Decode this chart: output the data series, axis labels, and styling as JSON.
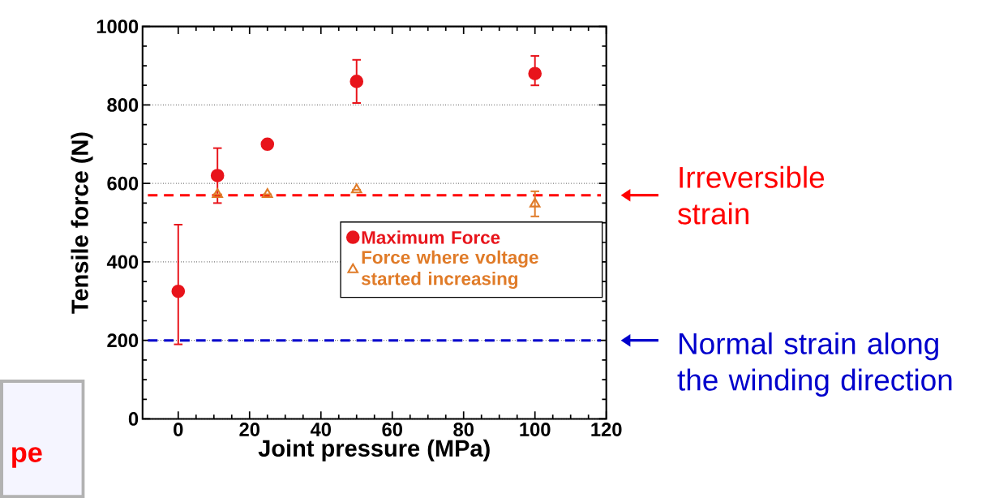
{
  "chart_data": {
    "type": "scatter",
    "xlabel": "Joint pressure (MPa)",
    "ylabel": "Tensile force (N)",
    "xlim": [
      -10,
      120
    ],
    "ylim": [
      0,
      1000
    ],
    "xticks": [
      0,
      20,
      40,
      60,
      80,
      100,
      120
    ],
    "yticks": [
      0,
      200,
      400,
      600,
      800,
      1000
    ],
    "grid": "y",
    "legend": "right",
    "series": [
      {
        "name": "Maximum Force",
        "color": "#e8141b",
        "marker": "circle",
        "x": [
          0,
          11,
          25,
          50,
          100
        ],
        "values": [
          325,
          620,
          700,
          860,
          880
        ],
        "errors": [
          [
            190,
            495
          ],
          70,
          null,
          55,
          [
            850,
            925
          ]
        ]
      },
      {
        "name": "Force where voltage started increasing",
        "color": "#e07b28",
        "marker": "triangle",
        "x": [
          11,
          25,
          50,
          100
        ],
        "values": [
          572,
          572,
          584,
          548
        ],
        "errors": [
          null,
          null,
          null,
          32
        ]
      }
    ],
    "ref_lines": [
      {
        "axis": "y",
        "value": 570,
        "label": "Irreversible strain",
        "color": "#ff0000",
        "line_style": "dashed"
      },
      {
        "axis": "y",
        "value": 200,
        "label": "Normal strain along the winding direction",
        "color": "#0000cc",
        "line_style": "dashed"
      }
    ],
    "annotations": [
      "pe"
    ]
  }
}
